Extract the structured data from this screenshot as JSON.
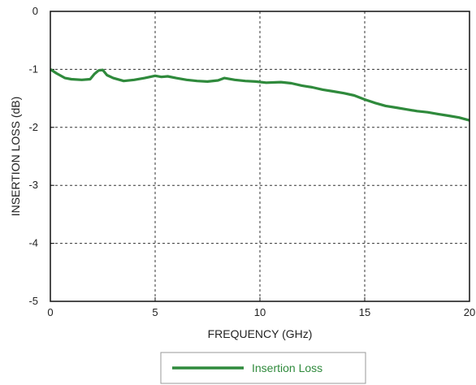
{
  "chart_data": {
    "type": "line",
    "title": "",
    "xlabel": "FREQUENCY (GHz)",
    "ylabel": "INSERTION LOSS (dB)",
    "xlim": [
      0,
      20
    ],
    "ylim": [
      -5,
      0
    ],
    "xticks": [
      0,
      5,
      10,
      15,
      20
    ],
    "yticks": [
      0,
      -1,
      -2,
      -3,
      -4,
      -5
    ],
    "grid": true,
    "legend_position": "bottom-center",
    "series": [
      {
        "name": "Insertion Loss",
        "color": "#2f8a3c",
        "x": [
          0,
          0.3,
          0.7,
          1.0,
          1.5,
          1.9,
          2.1,
          2.3,
          2.5,
          2.7,
          3.0,
          3.5,
          4.0,
          4.5,
          5.0,
          5.3,
          5.6,
          6.0,
          6.5,
          7.0,
          7.5,
          8.0,
          8.3,
          8.8,
          9.3,
          9.8,
          10.3,
          11.0,
          11.5,
          12.0,
          12.5,
          13.0,
          13.5,
          14.0,
          14.5,
          15.0,
          15.5,
          16.0,
          16.5,
          17.0,
          17.5,
          18.0,
          18.5,
          19.0,
          19.5,
          20.0
        ],
        "y": [
          -1.0,
          -1.07,
          -1.15,
          -1.17,
          -1.18,
          -1.17,
          -1.08,
          -1.02,
          -1.01,
          -1.1,
          -1.15,
          -1.2,
          -1.18,
          -1.15,
          -1.11,
          -1.13,
          -1.12,
          -1.15,
          -1.18,
          -1.2,
          -1.21,
          -1.19,
          -1.15,
          -1.18,
          -1.2,
          -1.21,
          -1.23,
          -1.22,
          -1.24,
          -1.28,
          -1.31,
          -1.35,
          -1.38,
          -1.41,
          -1.45,
          -1.52,
          -1.58,
          -1.63,
          -1.66,
          -1.69,
          -1.72,
          -1.74,
          -1.77,
          -1.8,
          -1.83,
          -1.88
        ]
      }
    ]
  }
}
